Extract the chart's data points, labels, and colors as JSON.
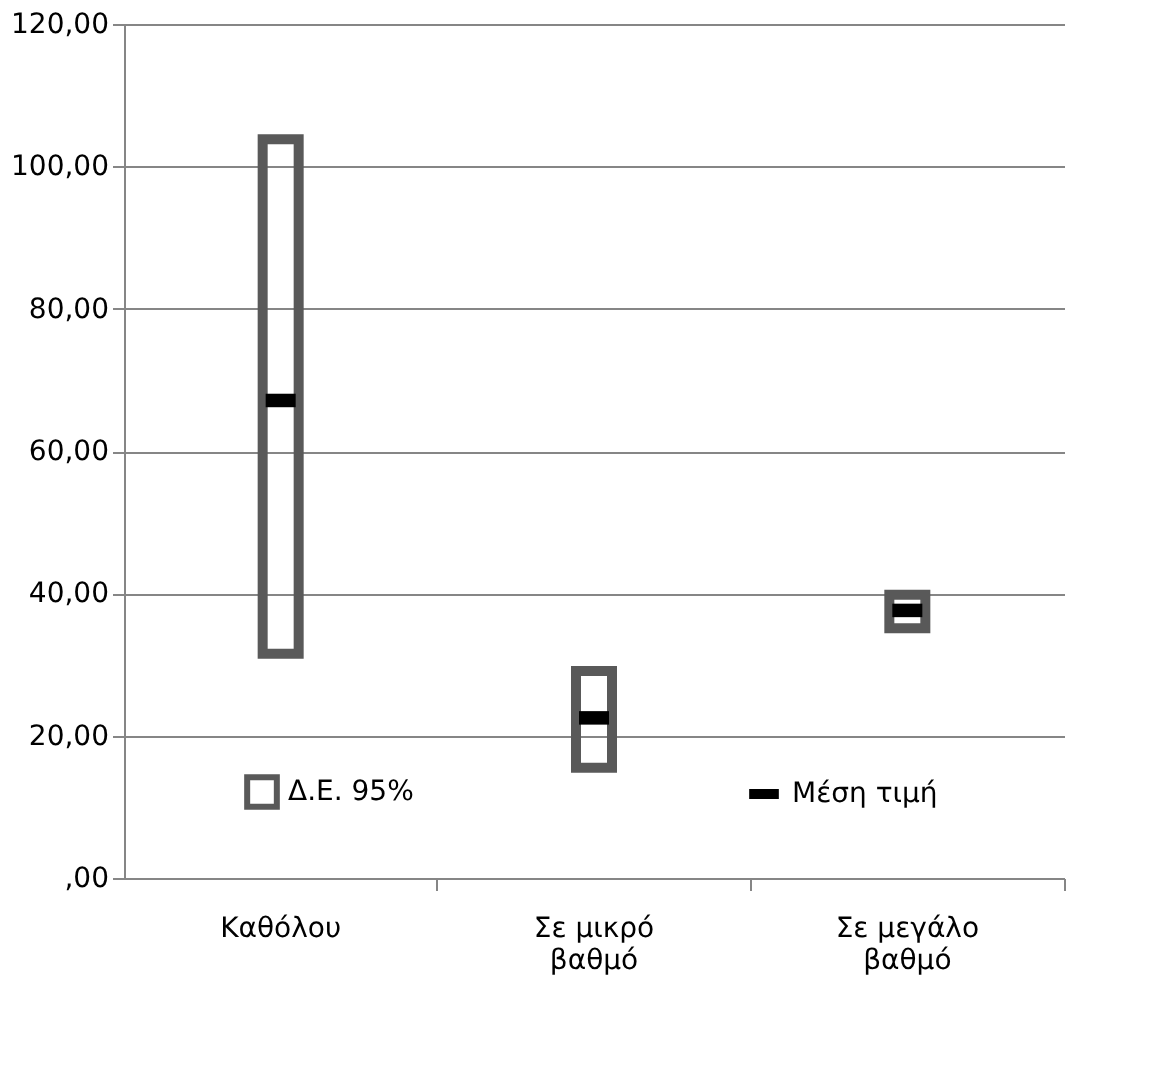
{
  "chart_data": {
    "type": "bar",
    "categories": [
      "Καθόλου",
      "Σε μικρό βαθμό",
      "Σε μεγάλο βαθμό"
    ],
    "series": [
      {
        "name": "Δ.Ε. 95%",
        "color": "#595959",
        "base": [
          31.5,
          15.5,
          35.1
        ],
        "values": [
          72.3,
          13.6,
          4.7
        ]
      },
      {
        "name": "Μέση τιμή",
        "type": "scatter",
        "color": "#000000",
        "values": [
          67.1,
          22.5,
          37.6
        ]
      }
    ],
    "ylim": [
      0,
      120
    ],
    "yticks": [
      {
        "value": 0,
        "label": ",00"
      },
      {
        "value": 20,
        "label": "20,00"
      },
      {
        "value": 40,
        "label": "40,00"
      },
      {
        "value": 60,
        "label": "60,00"
      },
      {
        "value": 80,
        "label": "80,00"
      },
      {
        "value": 100,
        "label": "100,00"
      },
      {
        "value": 120,
        "label": "120,00"
      }
    ],
    "grid": "y",
    "legend": "bottom"
  }
}
